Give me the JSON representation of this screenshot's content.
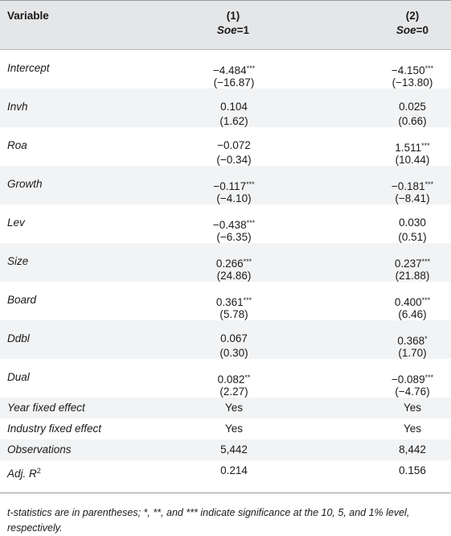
{
  "header": {
    "variable": "Variable",
    "col1_num": "(1)",
    "col1_var": "Soe",
    "col1_eq": "=1",
    "col2_num": "(2)",
    "col2_var": "Soe",
    "col2_eq": "=0"
  },
  "rows": [
    {
      "label": "Intercept",
      "c1": "−4.484",
      "c1_sig": "***",
      "c1_t": "(−16.87)",
      "c2": "−4.150",
      "c2_sig": "***",
      "c2_t": "(−13.80)"
    },
    {
      "label": "Invh",
      "c1": "0.104",
      "c1_sig": "",
      "c1_t": "(1.62)",
      "c2": "0.025",
      "c2_sig": "",
      "c2_t": "(0.66)"
    },
    {
      "label": "Roa",
      "c1": "−0.072",
      "c1_sig": "",
      "c1_t": "(−0.34)",
      "c2": "1.511",
      "c2_sig": "***",
      "c2_t": "(10.44)"
    },
    {
      "label": "Growth",
      "c1": "−0.117",
      "c1_sig": "***",
      "c1_t": "(−4.10)",
      "c2": "−0.181",
      "c2_sig": "***",
      "c2_t": "(−8.41)"
    },
    {
      "label": "Lev",
      "c1": "−0.438",
      "c1_sig": "***",
      "c1_t": "(−6.35)",
      "c2": "0.030",
      "c2_sig": "",
      "c2_t": "(0.51)"
    },
    {
      "label": "Size",
      "c1": "0.266",
      "c1_sig": "***",
      "c1_t": "(24.86)",
      "c2": "0.237",
      "c2_sig": "***",
      "c2_t": "(21.88)"
    },
    {
      "label": "Board",
      "c1": "0.361",
      "c1_sig": "***",
      "c1_t": "(5.78)",
      "c2": "0.400",
      "c2_sig": "***",
      "c2_t": "(6.46)"
    },
    {
      "label": "Ddbl",
      "c1": "0.067",
      "c1_sig": "",
      "c1_t": "(0.30)",
      "c2": "0.368",
      "c2_sig": "*",
      "c2_t": "(1.70)"
    },
    {
      "label": "Dual",
      "c1": "0.082",
      "c1_sig": "**",
      "c1_t": "(2.27)",
      "c2": "−0.089",
      "c2_sig": "***",
      "c2_t": "(−4.76)"
    }
  ],
  "single_rows": [
    {
      "label": "Year fixed effect",
      "c1": "Yes",
      "c2": "Yes"
    },
    {
      "label": "Industry fixed effect",
      "c1": "Yes",
      "c2": "Yes"
    },
    {
      "label": "Observations",
      "c1": "5,442",
      "c2": "8,442"
    }
  ],
  "adj_r2": {
    "label": "Adj. R",
    "sup": "2",
    "c1": "0.214",
    "c2": "0.156"
  },
  "footnote": "t-statistics are in parentheses; *, **, and *** indicate significance at the 10, 5, and 1% level, respectively."
}
